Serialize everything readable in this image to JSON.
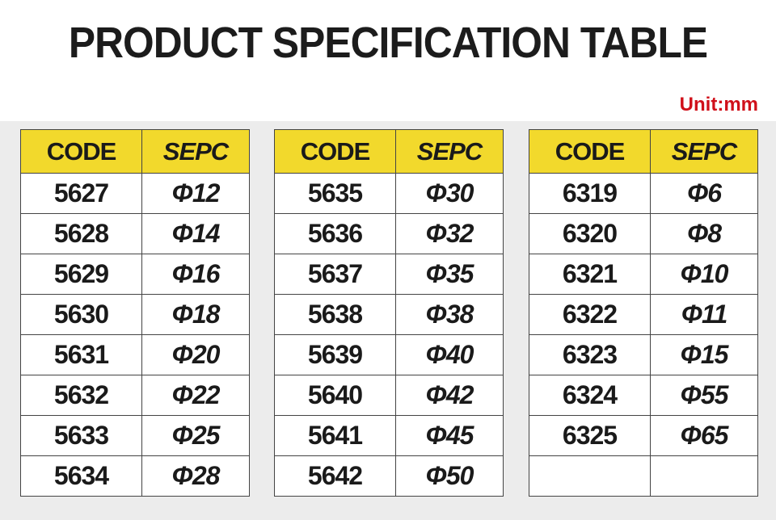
{
  "header": {
    "title": "PRODUCT SPECIFICATION TABLE",
    "unit": "Unit:mm"
  },
  "tables": [
    {
      "header": [
        "CODE",
        "SEPC"
      ],
      "rows": [
        [
          "5627",
          "Φ12"
        ],
        [
          "5628",
          "Φ14"
        ],
        [
          "5629",
          "Φ16"
        ],
        [
          "5630",
          "Φ18"
        ],
        [
          "5631",
          "Φ20"
        ],
        [
          "5632",
          "Φ22"
        ],
        [
          "5633",
          "Φ25"
        ],
        [
          "5634",
          "Φ28"
        ]
      ]
    },
    {
      "header": [
        "CODE",
        "SEPC"
      ],
      "rows": [
        [
          "5635",
          "Φ30"
        ],
        [
          "5636",
          "Φ32"
        ],
        [
          "5637",
          "Φ35"
        ],
        [
          "5638",
          "Φ38"
        ],
        [
          "5639",
          "Φ40"
        ],
        [
          "5640",
          "Φ42"
        ],
        [
          "5641",
          "Φ45"
        ],
        [
          "5642",
          "Φ50"
        ]
      ]
    },
    {
      "header": [
        "CODE",
        "SEPC"
      ],
      "rows": [
        [
          "6319",
          "Φ6"
        ],
        [
          "6320",
          "Φ8"
        ],
        [
          "6321",
          "Φ10"
        ],
        [
          "6322",
          "Φ11"
        ],
        [
          "6323",
          "Φ15"
        ],
        [
          "6324",
          "Φ55"
        ],
        [
          "6325",
          "Φ65"
        ]
      ]
    }
  ]
}
